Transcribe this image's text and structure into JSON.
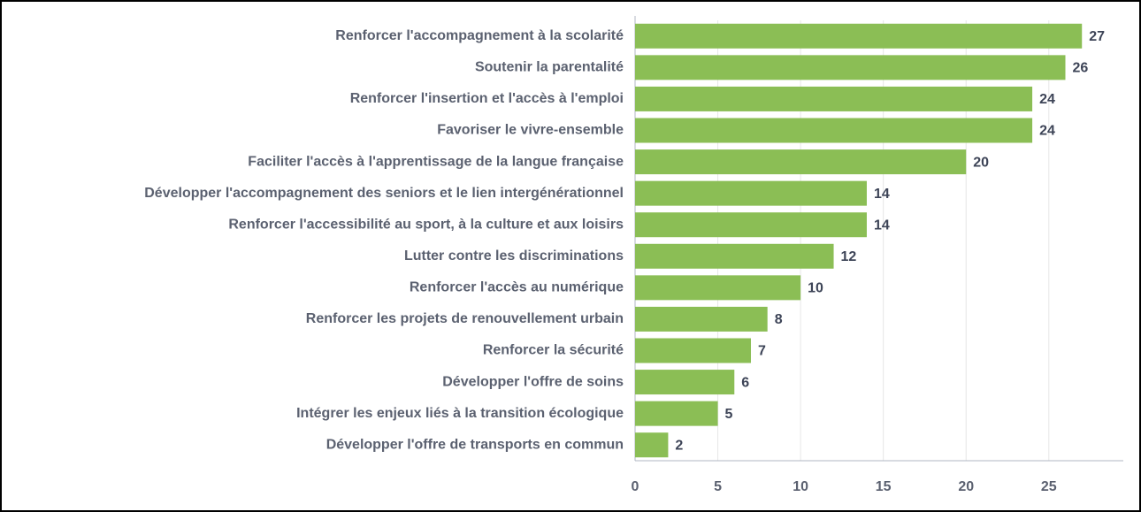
{
  "chart_data": {
    "type": "bar",
    "orientation": "horizontal",
    "categories": [
      "Renforcer l'accompagnement à la scolarité",
      "Soutenir la parentalité",
      "Renforcer l'insertion et l'accès à l'emploi",
      "Favoriser le vivre-ensemble",
      "Faciliter l'accès à l'apprentissage de la langue française",
      "Développer l'accompagnement des seniors et le lien intergénérationnel",
      "Renforcer l'accessibilité au sport, à la culture et aux loisirs",
      "Lutter contre les discriminations",
      "Renforcer l'accès au numérique",
      "Renforcer les projets de renouvellement urbain",
      "Renforcer la sécurité",
      "Développer l'offre de soins",
      "Intégrer les enjeux liés à la transition écologique",
      "Développer l'offre de transports en commun"
    ],
    "values": [
      27,
      26,
      24,
      24,
      20,
      14,
      14,
      12,
      10,
      8,
      7,
      6,
      5,
      2
    ],
    "color": "#8bbe55",
    "xlim": [
      0,
      29.5
    ],
    "xticks": [
      0,
      5,
      10,
      15,
      20,
      25
    ],
    "grid": true
  }
}
